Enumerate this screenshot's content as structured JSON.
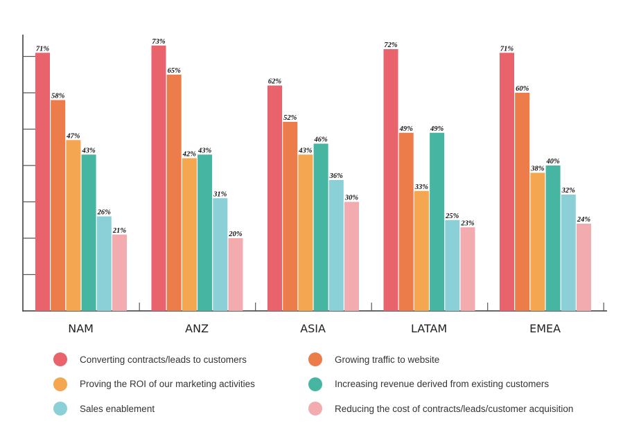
{
  "chart_data": {
    "type": "bar",
    "categories": [
      "NAM",
      "ANZ",
      "ASIA",
      "LATAM",
      "EMEA"
    ],
    "series": [
      {
        "name": "Converting contracts/leads to customers",
        "color": "#E8636B",
        "values": [
          71,
          73,
          62,
          72,
          71
        ]
      },
      {
        "name": "Growing traffic to website",
        "color": "#EC7C4A",
        "values": [
          58,
          65,
          52,
          49,
          60
        ]
      },
      {
        "name": "Proving the ROI of our marketing activities",
        "color": "#F5A651",
        "values": [
          47,
          42,
          43,
          33,
          38
        ]
      },
      {
        "name": "Increasing revenue derived from existing customers",
        "color": "#46B6A2",
        "values": [
          43,
          43,
          46,
          49,
          40
        ]
      },
      {
        "name": "Sales enablement",
        "color": "#8BCFD7",
        "values": [
          26,
          31,
          36,
          25,
          32
        ]
      },
      {
        "name": "Reducing the cost of contracts/leads/customer acquisition",
        "color": "#F2ABAE",
        "values": [
          21,
          20,
          30,
          23,
          24
        ]
      }
    ],
    "value_suffix": "%",
    "ylim": [
      0,
      76
    ],
    "ytick_step": 10,
    "ytick_labels_shown": false,
    "grid": false,
    "legend_position": "bottom",
    "title": "",
    "xlabel": "",
    "ylabel": ""
  }
}
